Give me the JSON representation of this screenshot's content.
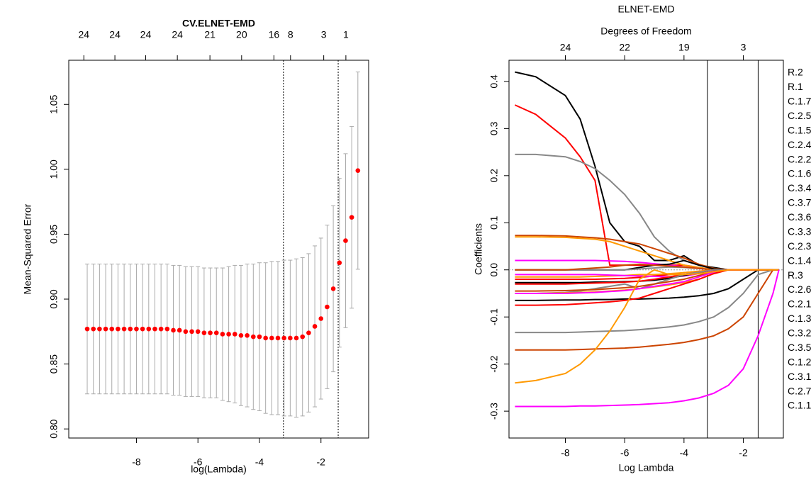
{
  "chart_data": [
    {
      "type": "errorbar",
      "title": "CV.ELNET-EMD",
      "xlabel": "log(Lambda)",
      "ylabel": "Mean-Squared Error",
      "x": [
        -9.6,
        -9.4,
        -9.2,
        -9.0,
        -8.8,
        -8.6,
        -8.4,
        -8.2,
        -8.0,
        -7.8,
        -7.6,
        -7.4,
        -7.2,
        -7.0,
        -6.8,
        -6.6,
        -6.4,
        -6.2,
        -6.0,
        -5.8,
        -5.6,
        -5.4,
        -5.2,
        -5.0,
        -4.8,
        -4.6,
        -4.4,
        -4.2,
        -4.0,
        -3.8,
        -3.6,
        -3.4,
        -3.2,
        -3.0,
        -2.8,
        -2.6,
        -2.4,
        -2.2,
        -2.0,
        -1.8,
        -1.6,
        -1.4,
        -1.2,
        -1.0,
        -0.8
      ],
      "values": [
        0.877,
        0.877,
        0.877,
        0.877,
        0.877,
        0.877,
        0.877,
        0.877,
        0.877,
        0.877,
        0.877,
        0.877,
        0.877,
        0.877,
        0.876,
        0.876,
        0.875,
        0.875,
        0.875,
        0.874,
        0.874,
        0.874,
        0.873,
        0.873,
        0.873,
        0.872,
        0.872,
        0.871,
        0.871,
        0.87,
        0.87,
        0.87,
        0.87,
        0.87,
        0.87,
        0.871,
        0.874,
        0.879,
        0.885,
        0.894,
        0.908,
        0.928,
        0.945,
        0.963,
        0.999
      ],
      "errors": [
        0.05,
        0.05,
        0.05,
        0.05,
        0.05,
        0.05,
        0.05,
        0.05,
        0.05,
        0.05,
        0.05,
        0.05,
        0.05,
        0.05,
        0.05,
        0.05,
        0.05,
        0.05,
        0.05,
        0.05,
        0.05,
        0.05,
        0.051,
        0.052,
        0.053,
        0.054,
        0.055,
        0.056,
        0.057,
        0.058,
        0.059,
        0.059,
        0.06,
        0.06,
        0.061,
        0.061,
        0.061,
        0.062,
        0.062,
        0.063,
        0.064,
        0.065,
        0.067,
        0.07,
        0.076
      ],
      "point_color": "#ff0000",
      "bar_color": "#aaaaaa",
      "xlim": [
        -10.2,
        -0.45
      ],
      "ylim": [
        0.793,
        1.084
      ],
      "xticks": [
        -8,
        -6,
        -4,
        -2
      ],
      "yticks": [
        {
          "value": 0.8,
          "label": "0.80"
        },
        0.85,
        {
          "value": 0.9,
          "label": "0.90"
        },
        0.95,
        {
          "value": 1.0,
          "label": "1.00"
        },
        1.05
      ],
      "top_ticks": [
        {
          "value": -9.71,
          "label": "24"
        },
        {
          "value": -8.7,
          "label": "24"
        },
        {
          "value": -7.7,
          "label": "24"
        },
        {
          "value": -6.67,
          "label": "24"
        },
        {
          "value": -5.61,
          "label": "21"
        },
        {
          "value": -4.58,
          "label": "20"
        },
        {
          "value": -3.53,
          "label": "16"
        },
        {
          "value": -2.99,
          "label": "8"
        },
        {
          "value": -1.91,
          "label": "3"
        },
        {
          "value": -1.19,
          "label": "1"
        }
      ],
      "vlines": [
        -3.22,
        -1.44
      ]
    },
    {
      "type": "line",
      "title": "ELNET-EMD",
      "top_label": "Degrees of Freedom",
      "xlabel": "Log Lambda",
      "ylabel": "Coefficients",
      "x": [
        -9.7,
        -9,
        -8,
        -7.5,
        -7,
        -6.5,
        -6,
        -5.5,
        -5,
        -4.5,
        -4,
        -3.5,
        -3,
        -2.5,
        -2,
        -1.5,
        -1,
        -0.8
      ],
      "xlim": [
        -9.9,
        -0.65
      ],
      "ylim": [
        -0.357,
        0.445
      ],
      "xticks": [
        -8,
        -6,
        -4,
        -2
      ],
      "yticks": [
        0.4,
        0.3,
        0.2,
        0.1,
        {
          "value": 0,
          "label": "0.0"
        },
        -0.1,
        -0.2,
        -0.3
      ],
      "top_ticks": [
        {
          "value": -8,
          "label": "24"
        },
        {
          "value": -6,
          "label": "22"
        },
        {
          "value": -4,
          "label": "19"
        },
        {
          "value": -2,
          "label": "3"
        }
      ],
      "vlines": [
        -3.21,
        -1.5
      ],
      "series": [
        {
          "name": "R.2",
          "color": "#000000",
          "values": [
            0.42,
            0.41,
            0.37,
            0.32,
            0.22,
            0.1,
            0.06,
            0.05,
            0.02,
            0.02,
            0.03,
            0.01,
            0.005,
            0,
            0,
            0,
            0,
            0
          ]
        },
        {
          "name": "R.1",
          "color": "#ff0000",
          "values": [
            0.35,
            0.33,
            0.28,
            0.24,
            0.19,
            0.01,
            0.01,
            0.01,
            0.01,
            0.01,
            0.01,
            0.005,
            0,
            0,
            0,
            0,
            0,
            0
          ]
        },
        {
          "name": "C.1.7",
          "color": "#888888",
          "values": [
            0.245,
            0.245,
            0.24,
            0.23,
            0.215,
            0.19,
            0.16,
            0.12,
            0.07,
            0.04,
            0.02,
            0.01,
            0.003,
            0,
            0,
            0,
            0,
            0
          ]
        },
        {
          "name": "C.2.5",
          "color": "#cc4400",
          "values": [
            0.073,
            0.073,
            0.072,
            0.07,
            0.068,
            0.065,
            0.06,
            0.055,
            0.045,
            0.035,
            0.025,
            0.012,
            0.003,
            0,
            0,
            0,
            0,
            0
          ]
        },
        {
          "name": "C.1.5",
          "color": "#ff9900",
          "values": [
            0.07,
            0.07,
            0.069,
            0.067,
            0.065,
            0.06,
            0.05,
            0.04,
            0.03,
            0.02,
            0.01,
            0.005,
            0,
            0,
            0,
            0,
            0,
            0
          ]
        },
        {
          "name": "C.2.4",
          "color": "#ff00ff",
          "values": [
            0.02,
            0.02,
            0.02,
            0.02,
            0.02,
            0.019,
            0.018,
            0.016,
            0.013,
            0.01,
            0.006,
            0.003,
            0,
            0,
            0,
            0,
            0,
            0
          ]
        },
        {
          "name": "C.2.2",
          "color": "#000000",
          "values": [
            0,
            0,
            0,
            0,
            0,
            0,
            0,
            0.005,
            0.01,
            0.012,
            0.02,
            0.01,
            0.002,
            0,
            0,
            0,
            0,
            0
          ]
        },
        {
          "name": "C.1.6",
          "color": "#ff0000",
          "values": [
            -0.02,
            -0.02,
            -0.02,
            -0.02,
            -0.02,
            -0.019,
            -0.018,
            -0.016,
            -0.013,
            -0.01,
            -0.006,
            -0.003,
            0,
            0,
            0,
            0,
            0,
            0
          ]
        },
        {
          "name": "C.3.4",
          "color": "#888888",
          "values": [
            0,
            0,
            0,
            0,
            0,
            0,
            0,
            0.002,
            0.004,
            0.006,
            0.005,
            0.003,
            0,
            0,
            0,
            0,
            0,
            0
          ]
        },
        {
          "name": "C.3.7",
          "color": "#cc4400",
          "values": [
            0,
            0,
            0,
            0.002,
            0.004,
            0.006,
            0.01,
            0.012,
            0.01,
            0.008,
            0.006,
            0.003,
            0,
            0,
            0,
            0,
            0,
            0
          ]
        },
        {
          "name": "C.3.6",
          "color": "#ff9900",
          "values": [
            -0.015,
            -0.015,
            -0.015,
            -0.015,
            -0.014,
            -0.013,
            -0.012,
            -0.01,
            -0.01,
            -0.008,
            -0.006,
            -0.003,
            0,
            0,
            0,
            0,
            0,
            0
          ]
        },
        {
          "name": "C.3.3",
          "color": "#ff00ff",
          "values": [
            -0.01,
            -0.01,
            -0.01,
            -0.01,
            -0.01,
            -0.011,
            -0.012,
            -0.013,
            -0.014,
            -0.015,
            -0.013,
            -0.008,
            -0.002,
            0,
            0,
            0,
            0,
            0
          ]
        },
        {
          "name": "C.2.3",
          "color": "#000000",
          "values": [
            -0.027,
            -0.027,
            -0.027,
            -0.027,
            -0.026,
            -0.026,
            -0.025,
            -0.024,
            -0.022,
            -0.018,
            -0.012,
            -0.006,
            0,
            0,
            0,
            0,
            0,
            0
          ]
        },
        {
          "name": "C.1.4",
          "color": "#ff0000",
          "values": [
            -0.03,
            -0.03,
            -0.03,
            -0.029,
            -0.028,
            -0.027,
            -0.026,
            -0.024,
            -0.02,
            -0.015,
            -0.01,
            -0.005,
            0,
            0,
            0,
            0,
            0,
            0
          ]
        },
        {
          "name": "R.3",
          "color": "#888888",
          "values": [
            -0.05,
            -0.05,
            -0.048,
            -0.045,
            -0.04,
            -0.035,
            -0.03,
            -0.04,
            -0.03,
            -0.02,
            -0.01,
            -0.005,
            0,
            0,
            0,
            0,
            0,
            0
          ]
        },
        {
          "name": "C.2.6",
          "color": "#cc4400",
          "values": [
            -0.045,
            -0.045,
            -0.044,
            -0.043,
            -0.042,
            -0.04,
            -0.038,
            -0.035,
            -0.03,
            -0.025,
            -0.02,
            -0.012,
            -0.004,
            0,
            0,
            0,
            0,
            0
          ]
        },
        {
          "name": "C.2.1",
          "color": "#ff9900",
          "values": [
            -0.05,
            -0.05,
            -0.049,
            -0.048,
            -0.047,
            -0.045,
            -0.043,
            -0.04,
            -0.036,
            -0.032,
            -0.027,
            -0.02,
            -0.008,
            0,
            0,
            0,
            0,
            0
          ]
        },
        {
          "name": "C.1.3",
          "color": "#ff00ff",
          "values": [
            -0.05,
            -0.05,
            -0.05,
            -0.049,
            -0.048,
            -0.046,
            -0.044,
            -0.04,
            -0.035,
            -0.03,
            -0.025,
            -0.015,
            -0.005,
            0,
            0,
            0,
            0,
            0
          ]
        },
        {
          "name": "C.3.2",
          "color": "#000000",
          "values": [
            -0.065,
            -0.065,
            -0.064,
            -0.064,
            -0.063,
            -0.063,
            -0.062,
            -0.062,
            -0.061,
            -0.06,
            -0.058,
            -0.055,
            -0.05,
            -0.04,
            -0.02,
            0,
            0,
            0
          ]
        },
        {
          "name": "C.3.5",
          "color": "#ff0000",
          "values": [
            -0.075,
            -0.075,
            -0.074,
            -0.072,
            -0.07,
            -0.068,
            -0.065,
            -0.06,
            -0.05,
            -0.04,
            -0.03,
            -0.02,
            -0.008,
            0,
            0,
            0,
            0,
            0
          ]
        },
        {
          "name": "C.1.2",
          "color": "#888888",
          "values": [
            -0.133,
            -0.133,
            -0.133,
            -0.132,
            -0.131,
            -0.13,
            -0.129,
            -0.127,
            -0.124,
            -0.121,
            -0.117,
            -0.11,
            -0.1,
            -0.08,
            -0.05,
            -0.01,
            0,
            0
          ]
        },
        {
          "name": "C.3.1",
          "color": "#cc4400",
          "values": [
            -0.17,
            -0.17,
            -0.17,
            -0.169,
            -0.168,
            -0.167,
            -0.166,
            -0.164,
            -0.161,
            -0.158,
            -0.154,
            -0.148,
            -0.14,
            -0.125,
            -0.1,
            -0.05,
            0,
            0
          ]
        },
        {
          "name": "C.2.7",
          "color": "#ff9900",
          "values": [
            -0.24,
            -0.235,
            -0.22,
            -0.2,
            -0.17,
            -0.13,
            -0.08,
            -0.02,
            0,
            -0.01,
            -0.01,
            -0.008,
            -0.004,
            0,
            0,
            0,
            0,
            0
          ]
        },
        {
          "name": "C.1.1",
          "color": "#ff00ff",
          "values": [
            -0.29,
            -0.29,
            -0.29,
            -0.289,
            -0.289,
            -0.288,
            -0.287,
            -0.286,
            -0.284,
            -0.282,
            -0.278,
            -0.272,
            -0.262,
            -0.245,
            -0.21,
            -0.14,
            -0.05,
            0
          ]
        }
      ]
    }
  ]
}
